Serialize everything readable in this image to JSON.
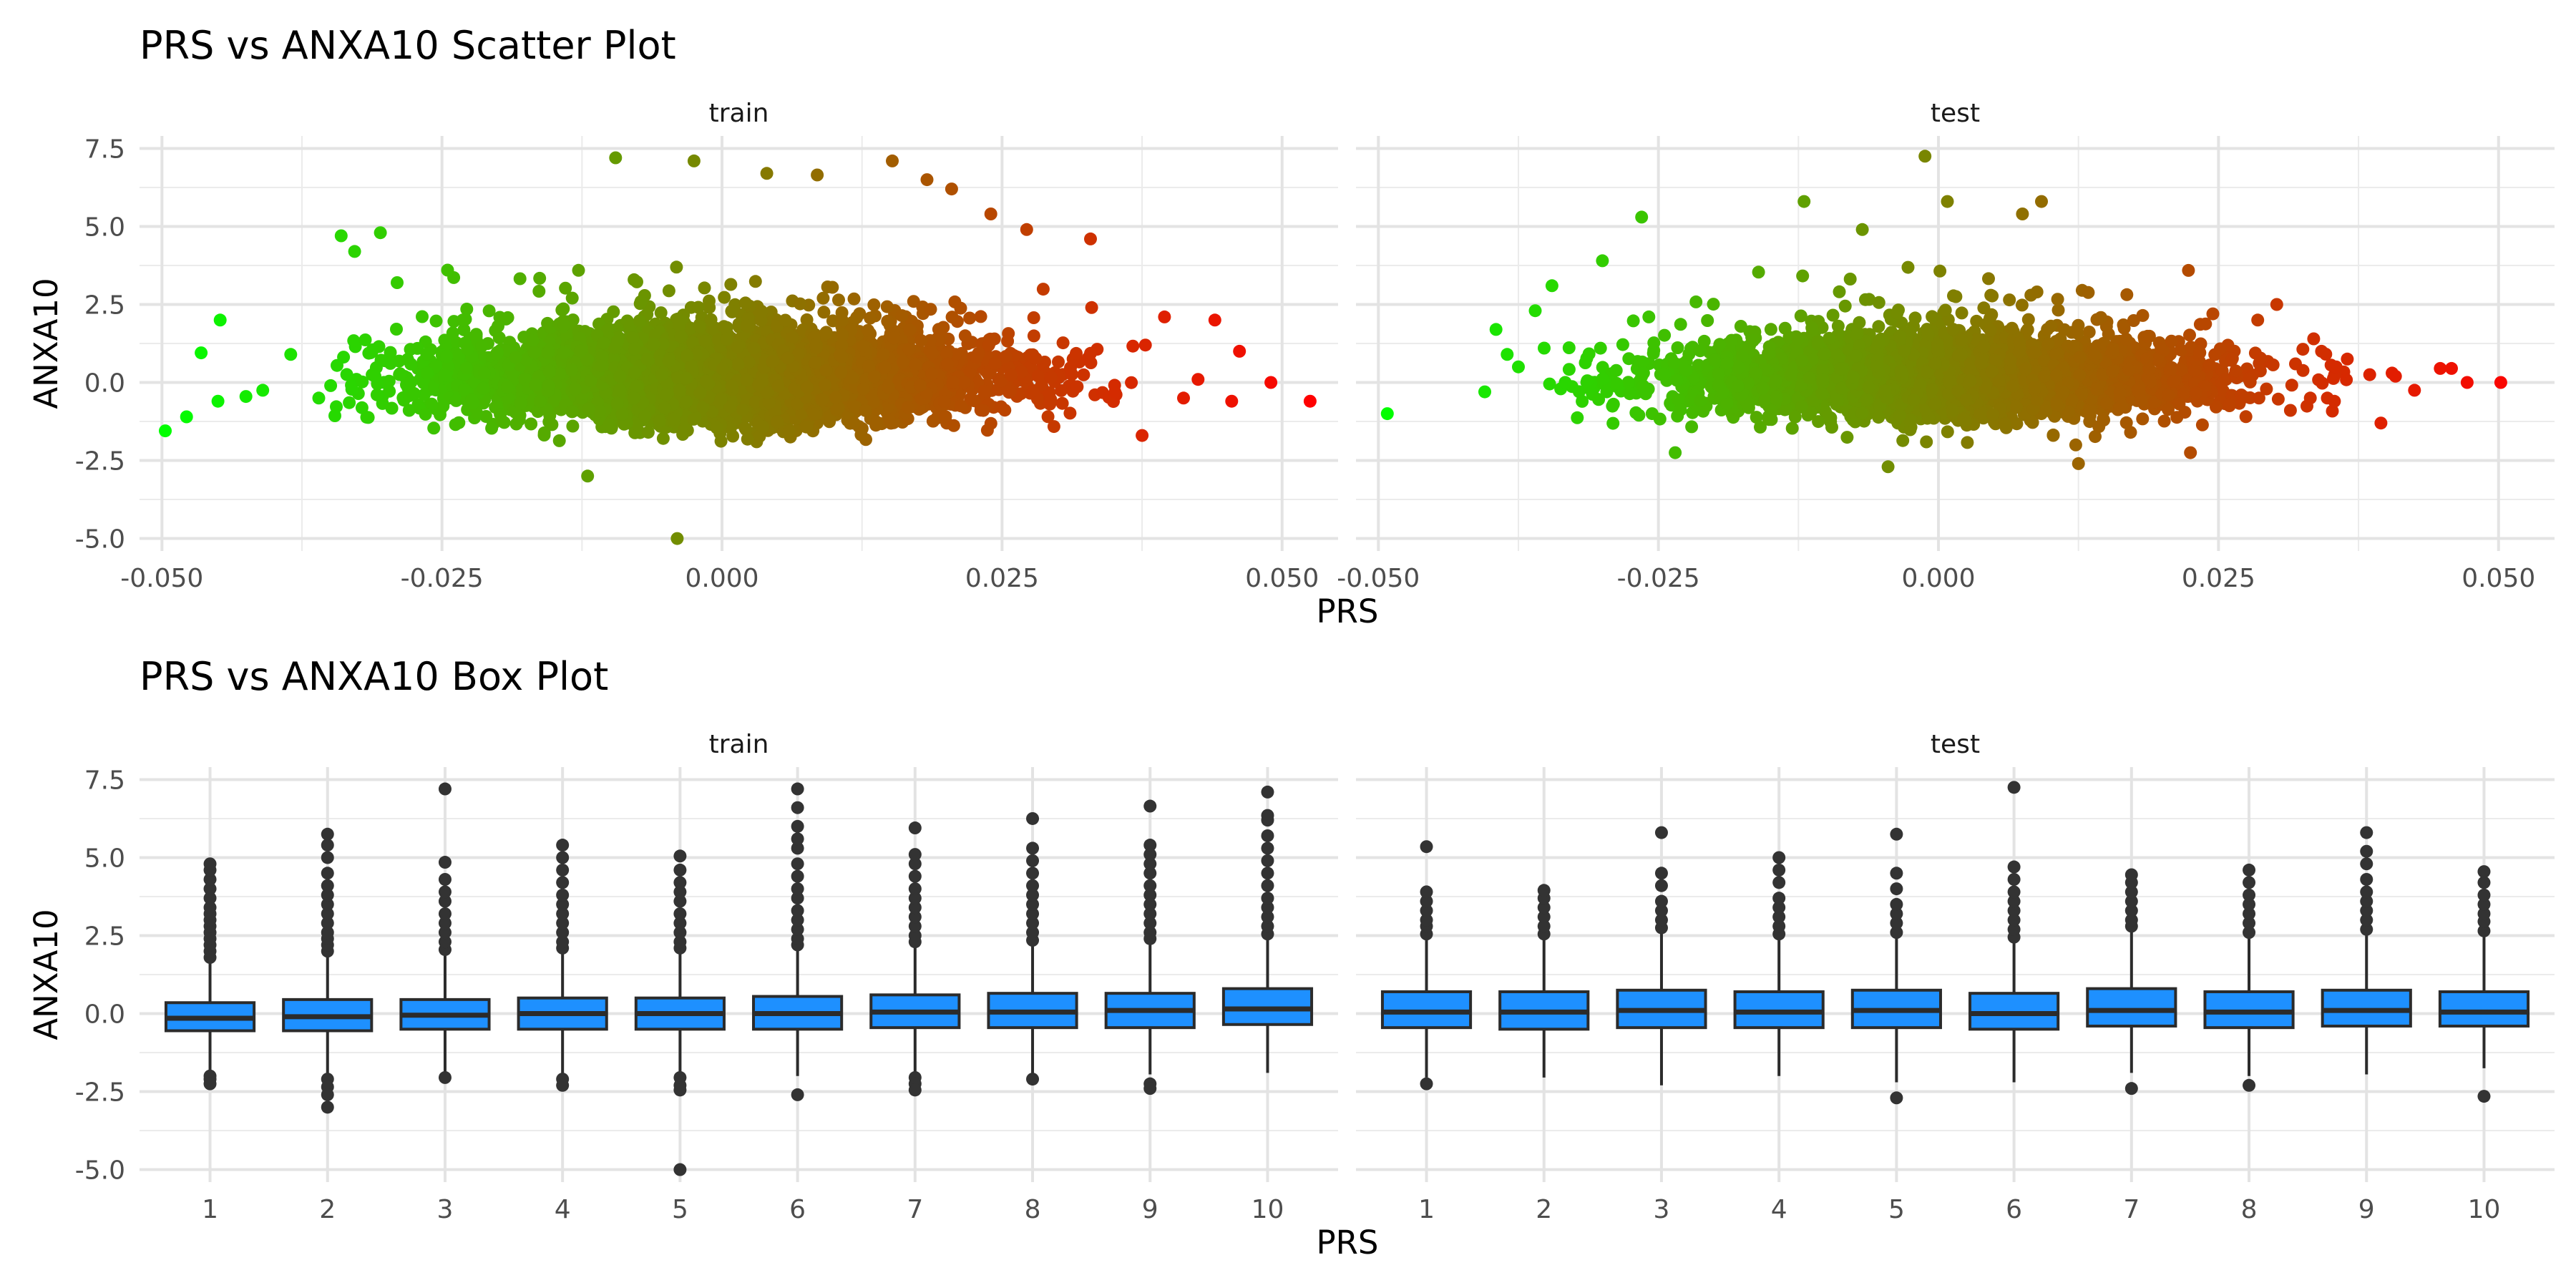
{
  "chart_data": [
    {
      "type": "scatter",
      "title": "PRS vs ANXA10 Scatter Plot",
      "xlabel": "PRS",
      "ylabel": "ANXA10",
      "xlim": [
        -0.052,
        0.055
      ],
      "ylim": [
        -5.4,
        7.9
      ],
      "x_ticks": [
        -0.05,
        -0.025,
        0.0,
        0.025,
        0.05
      ],
      "x_tick_labels": [
        "-0.050",
        "-0.025",
        "0.000",
        "0.025",
        "0.050"
      ],
      "y_ticks": [
        -5.0,
        -2.5,
        0.0,
        2.5,
        5.0,
        7.5
      ],
      "y_tick_labels": [
        "-5.0",
        "-2.5",
        "0.0",
        "2.5",
        "5.0",
        "7.5"
      ],
      "color_scale": {
        "low": "#00ff00",
        "high": "#ff0000",
        "mapped_to": "PRS"
      },
      "grid": true,
      "facets": [
        {
          "label": "train",
          "points": [
            [
              -0.0497,
              -1.55
            ],
            [
              -0.0478,
              -1.1
            ],
            [
              -0.0465,
              0.95
            ],
            [
              -0.0448,
              2.0
            ],
            [
              -0.045,
              -0.6
            ],
            [
              -0.0425,
              -0.45
            ],
            [
              -0.041,
              -0.25
            ],
            [
              -0.0385,
              0.9
            ],
            [
              -0.036,
              -0.5
            ],
            [
              -0.034,
              4.7
            ],
            [
              -0.0328,
              4.2
            ],
            [
              -0.0305,
              4.8
            ],
            [
              -0.029,
              3.2
            ],
            [
              -0.0245,
              3.6
            ],
            [
              -0.012,
              -3.0
            ],
            [
              -0.0095,
              7.2
            ],
            [
              -0.004,
              -5.0
            ],
            [
              -0.0025,
              7.1
            ],
            [
              0.004,
              6.7
            ],
            [
              0.0085,
              6.65
            ],
            [
              0.0152,
              7.1
            ],
            [
              0.0183,
              6.5
            ],
            [
              0.0205,
              6.2
            ],
            [
              0.024,
              5.4
            ],
            [
              0.0272,
              4.9
            ],
            [
              0.0329,
              4.6
            ],
            [
              0.033,
              2.4
            ],
            [
              0.0375,
              -1.7
            ],
            [
              0.0378,
              1.2
            ],
            [
              0.0395,
              2.1
            ],
            [
              0.0412,
              -0.5
            ],
            [
              0.0425,
              0.1
            ],
            [
              0.044,
              2.0
            ],
            [
              0.0455,
              -0.6
            ],
            [
              0.0462,
              1.0
            ],
            [
              0.049,
              0.0
            ],
            [
              0.0525,
              -0.6
            ]
          ]
        },
        {
          "label": "test",
          "points": [
            [
              -0.0492,
              -1.0
            ],
            [
              -0.0405,
              -0.3
            ],
            [
              -0.0395,
              1.7
            ],
            [
              -0.0385,
              0.9
            ],
            [
              -0.0375,
              0.5
            ],
            [
              -0.036,
              2.3
            ],
            [
              -0.0352,
              1.1
            ],
            [
              -0.0345,
              3.1
            ],
            [
              -0.03,
              3.9
            ],
            [
              -0.0265,
              5.3
            ],
            [
              -0.0235,
              -2.25
            ],
            [
              -0.012,
              5.8
            ],
            [
              -0.0068,
              4.9
            ],
            [
              -0.0045,
              -2.7
            ],
            [
              -0.0012,
              7.25
            ],
            [
              0.0008,
              5.8
            ],
            [
              0.0075,
              5.4
            ],
            [
              0.0092,
              5.8
            ],
            [
              0.0125,
              -2.6
            ],
            [
              0.0225,
              -2.25
            ],
            [
              0.0245,
              2.2
            ],
            [
              0.0285,
              2.0
            ],
            [
              0.0302,
              2.5
            ],
            [
              0.0332,
              -0.5
            ],
            [
              0.0335,
              1.4
            ],
            [
              0.0342,
              1.0
            ],
            [
              0.0355,
              0.5
            ],
            [
              0.0365,
              0.75
            ],
            [
              0.0385,
              0.25
            ],
            [
              0.0395,
              -1.3
            ],
            [
              0.0405,
              0.3
            ],
            [
              0.0408,
              0.2
            ],
            [
              0.0425,
              -0.25
            ],
            [
              0.0448,
              0.45
            ],
            [
              0.0458,
              0.45
            ],
            [
              0.0472,
              0.0
            ],
            [
              0.0502,
              0.0
            ]
          ]
        }
      ]
    },
    {
      "type": "box",
      "title": "PRS vs ANXA10 Box Plot",
      "xlabel": "PRS",
      "ylabel": "ANXA10",
      "categories": [
        "1",
        "2",
        "3",
        "4",
        "5",
        "6",
        "7",
        "8",
        "9",
        "10"
      ],
      "ylim": [
        -5.4,
        7.9
      ],
      "y_ticks": [
        -5.0,
        -2.5,
        0.0,
        2.5,
        5.0,
        7.5
      ],
      "y_tick_labels": [
        "-5.0",
        "-2.5",
        "0.0",
        "2.5",
        "5.0",
        "7.5"
      ],
      "box_fill": "#1e90ff",
      "box_stroke": "#2b2b2b",
      "grid": true,
      "facets": [
        {
          "label": "train",
          "boxes": [
            {
              "q1": -0.55,
              "median": -0.15,
              "q3": 0.35,
              "whisker_low": -1.95,
              "whisker_high": 1.7,
              "outliers_low": [
                -2.0,
                -2.1,
                -2.25
              ],
              "outliers_high": [
                1.8,
                2.0,
                2.2,
                2.4,
                2.6,
                2.8,
                3.0,
                3.2,
                3.4,
                3.7,
                4.0,
                4.3,
                4.6,
                4.8
              ]
            },
            {
              "q1": -0.55,
              "median": -0.1,
              "q3": 0.45,
              "whisker_low": -2.0,
              "whisker_high": 1.9,
              "outliers_low": [
                -2.1,
                -2.35,
                -2.6,
                -3.0
              ],
              "outliers_high": [
                2.0,
                2.2,
                2.4,
                2.6,
                2.9,
                3.2,
                3.5,
                3.8,
                4.1,
                4.5,
                5.0,
                5.4,
                5.75
              ]
            },
            {
              "q1": -0.5,
              "median": -0.05,
              "q3": 0.45,
              "whisker_low": -1.95,
              "whisker_high": 1.95,
              "outliers_low": [
                -2.05
              ],
              "outliers_high": [
                2.05,
                2.3,
                2.6,
                2.9,
                3.2,
                3.6,
                3.9,
                4.3,
                4.85,
                7.2
              ]
            },
            {
              "q1": -0.5,
              "median": 0.0,
              "q3": 0.5,
              "whisker_low": -1.95,
              "whisker_high": 2.0,
              "outliers_low": [
                -2.1,
                -2.3
              ],
              "outliers_high": [
                2.1,
                2.3,
                2.6,
                2.9,
                3.2,
                3.5,
                3.8,
                4.2,
                4.6,
                5.0,
                5.4
              ]
            },
            {
              "q1": -0.5,
              "median": 0.0,
              "q3": 0.5,
              "whisker_low": -1.95,
              "whisker_high": 2.0,
              "outliers_low": [
                -2.05,
                -2.3,
                -2.45,
                -5.0
              ],
              "outliers_high": [
                2.1,
                2.3,
                2.6,
                2.9,
                3.2,
                3.6,
                3.9,
                4.2,
                4.6,
                5.05
              ]
            },
            {
              "q1": -0.5,
              "median": 0.0,
              "q3": 0.55,
              "whisker_low": -2.0,
              "whisker_high": 2.1,
              "outliers_low": [
                -2.6
              ],
              "outliers_high": [
                2.2,
                2.4,
                2.7,
                3.0,
                3.3,
                3.7,
                4.0,
                4.4,
                4.8,
                5.3,
                5.6,
                6.0,
                6.6,
                7.2
              ]
            },
            {
              "q1": -0.45,
              "median": 0.05,
              "q3": 0.6,
              "whisker_low": -1.95,
              "whisker_high": 2.2,
              "outliers_low": [
                -2.05,
                -2.25,
                -2.45
              ],
              "outliers_high": [
                2.3,
                2.5,
                2.8,
                3.1,
                3.4,
                3.7,
                4.0,
                4.4,
                4.8,
                5.1,
                5.95
              ]
            },
            {
              "q1": -0.45,
              "median": 0.05,
              "q3": 0.65,
              "whisker_low": -1.95,
              "whisker_high": 2.25,
              "outliers_low": [
                -2.1
              ],
              "outliers_high": [
                2.35,
                2.6,
                2.9,
                3.2,
                3.5,
                3.8,
                4.1,
                4.5,
                4.9,
                5.3,
                6.25
              ]
            },
            {
              "q1": -0.45,
              "median": 0.1,
              "q3": 0.65,
              "whisker_low": -1.95,
              "whisker_high": 2.3,
              "outliers_low": [
                -2.25,
                -2.4
              ],
              "outliers_high": [
                2.4,
                2.6,
                2.9,
                3.2,
                3.5,
                3.8,
                4.1,
                4.5,
                4.8,
                5.1,
                5.4,
                6.65
              ]
            },
            {
              "q1": -0.35,
              "median": 0.15,
              "q3": 0.8,
              "whisker_low": -1.9,
              "whisker_high": 2.45,
              "outliers_low": [],
              "outliers_high": [
                2.55,
                2.8,
                3.1,
                3.4,
                3.7,
                4.1,
                4.5,
                4.9,
                5.3,
                5.7,
                6.2,
                6.35,
                7.1
              ]
            }
          ]
        },
        {
          "label": "test",
          "boxes": [
            {
              "q1": -0.45,
              "median": 0.05,
              "q3": 0.7,
              "whisker_low": -2.05,
              "whisker_high": 2.4,
              "outliers_low": [
                -2.25
              ],
              "outliers_high": [
                2.55,
                2.8,
                3.0,
                3.3,
                3.6,
                3.9,
                5.35
              ]
            },
            {
              "q1": -0.5,
              "median": 0.05,
              "q3": 0.7,
              "whisker_low": -2.05,
              "whisker_high": 2.45,
              "outliers_low": [],
              "outliers_high": [
                2.55,
                2.8,
                3.1,
                3.4,
                3.7,
                3.95
              ]
            },
            {
              "q1": -0.45,
              "median": 0.1,
              "q3": 0.75,
              "whisker_low": -2.3,
              "whisker_high": 2.6,
              "outliers_low": [],
              "outliers_high": [
                2.75,
                3.0,
                3.3,
                3.6,
                4.1,
                4.5,
                5.8
              ]
            },
            {
              "q1": -0.45,
              "median": 0.05,
              "q3": 0.7,
              "whisker_low": -2.0,
              "whisker_high": 2.4,
              "outliers_low": [],
              "outliers_high": [
                2.55,
                2.8,
                3.1,
                3.4,
                3.7,
                4.2,
                4.6,
                5.0
              ]
            },
            {
              "q1": -0.45,
              "median": 0.1,
              "q3": 0.75,
              "whisker_low": -2.2,
              "whisker_high": 2.45,
              "outliers_low": [
                -2.7
              ],
              "outliers_high": [
                2.6,
                2.9,
                3.2,
                3.5,
                4.0,
                4.5,
                5.75
              ]
            },
            {
              "q1": -0.5,
              "median": 0.0,
              "q3": 0.65,
              "whisker_low": -2.2,
              "whisker_high": 2.3,
              "outliers_low": [],
              "outliers_high": [
                2.45,
                2.7,
                3.0,
                3.3,
                3.6,
                3.9,
                4.3,
                4.7,
                7.25
              ]
            },
            {
              "q1": -0.4,
              "median": 0.1,
              "q3": 0.8,
              "whisker_low": -1.9,
              "whisker_high": 2.65,
              "outliers_low": [
                -2.4
              ],
              "outliers_high": [
                2.8,
                3.0,
                3.3,
                3.6,
                3.9,
                4.2,
                4.45
              ]
            },
            {
              "q1": -0.45,
              "median": 0.05,
              "q3": 0.7,
              "whisker_low": -2.0,
              "whisker_high": 2.45,
              "outliers_low": [
                -2.3
              ],
              "outliers_high": [
                2.6,
                2.9,
                3.2,
                3.5,
                3.8,
                4.2,
                4.6
              ]
            },
            {
              "q1": -0.4,
              "median": 0.1,
              "q3": 0.75,
              "whisker_low": -1.95,
              "whisker_high": 2.55,
              "outliers_low": [],
              "outliers_high": [
                2.7,
                3.0,
                3.3,
                3.6,
                3.9,
                4.3,
                4.8,
                5.2,
                5.8
              ]
            },
            {
              "q1": -0.4,
              "median": 0.05,
              "q3": 0.7,
              "whisker_low": -1.75,
              "whisker_high": 2.5,
              "outliers_low": [
                -2.65
              ],
              "outliers_high": [
                2.65,
                2.95,
                3.2,
                3.5,
                3.8,
                4.2,
                4.55
              ]
            }
          ]
        }
      ]
    }
  ]
}
